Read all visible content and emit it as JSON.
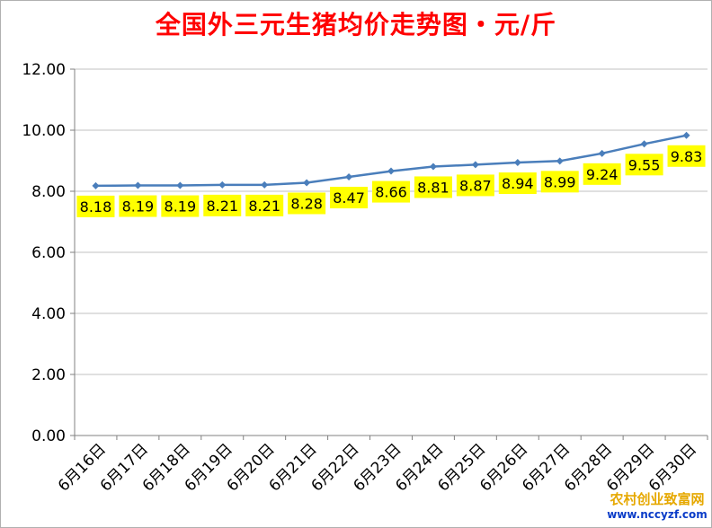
{
  "chart_data": {
    "type": "line",
    "title": "全国外三元生猪均价走势图・元/斤",
    "categories": [
      "6月16日",
      "6月17日",
      "6月18日",
      "6月19日",
      "6月20日",
      "6月21日",
      "6月22日",
      "6月23日",
      "6月24日",
      "6月25日",
      "6月26日",
      "6月27日",
      "6月28日",
      "6月29日",
      "6月30日"
    ],
    "values": [
      8.18,
      8.19,
      8.19,
      8.21,
      8.21,
      8.28,
      8.47,
      8.66,
      8.81,
      8.87,
      8.94,
      8.99,
      9.24,
      9.55,
      9.83
    ],
    "value_labels": [
      "8.18",
      "8.19",
      "8.19",
      "8.21",
      "8.21",
      "8.28",
      "8.47",
      "8.66",
      "8.81",
      "8.87",
      "8.94",
      "8.99",
      "9.24",
      "9.55",
      "9.83"
    ],
    "ylim": [
      0,
      12
    ],
    "yticks": [
      "0.00",
      "2.00",
      "4.00",
      "6.00",
      "8.00",
      "10.00",
      "12.00"
    ],
    "grid": true,
    "legend": "none",
    "line_color": "#4a7ebb",
    "label_bg_color": "#ffff00"
  },
  "watermark": {
    "line1": "农村创业致富网",
    "line2": "www.nccyzf.com"
  }
}
